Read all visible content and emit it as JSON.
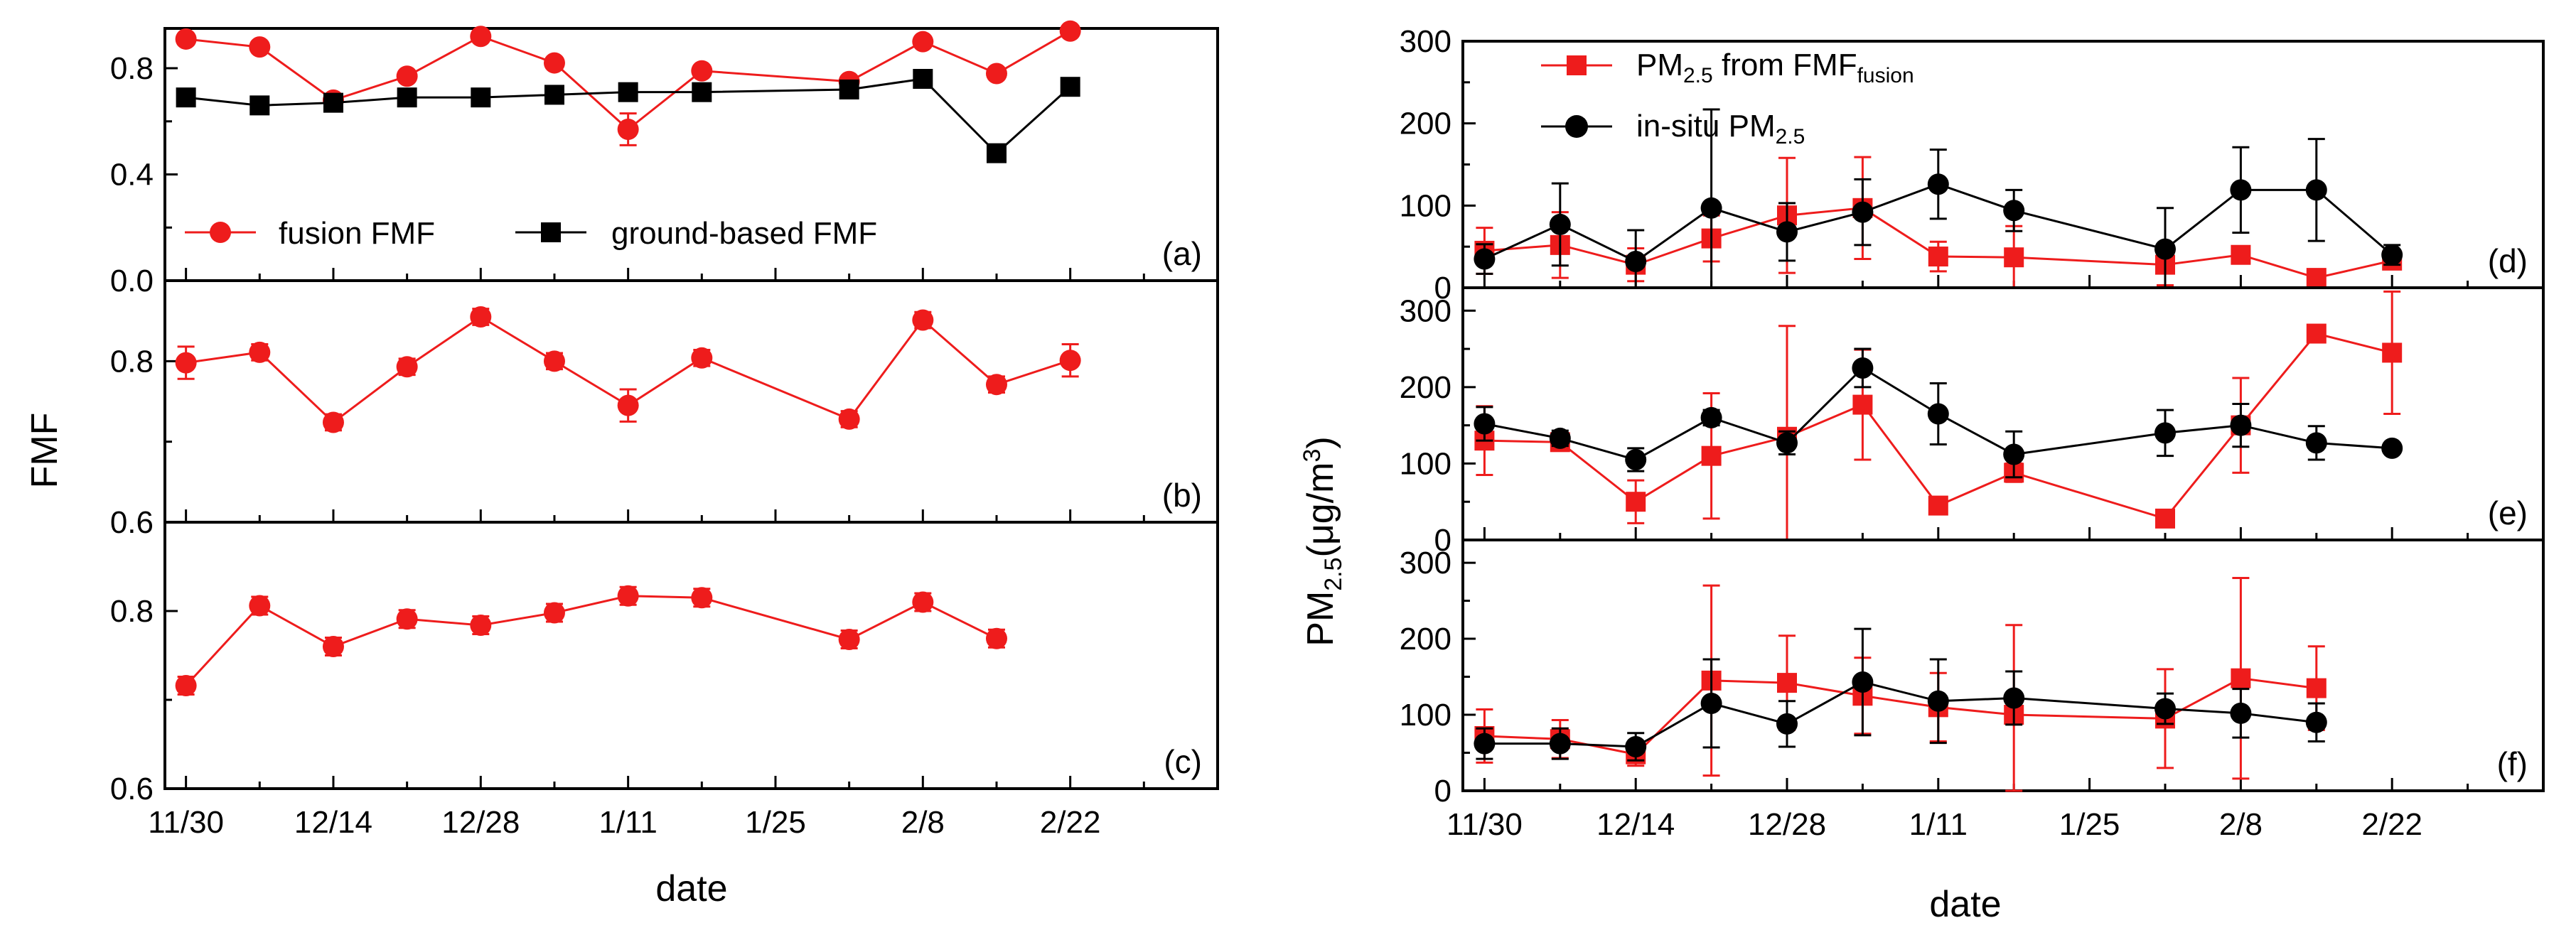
{
  "chart_data": [
    {
      "type": "line",
      "panel": "a",
      "panel_label": "(a)",
      "ylim": [
        0.0,
        0.95
      ],
      "yticks": [
        0.0,
        0.4,
        0.8
      ],
      "ytick_labels": [
        "0.0",
        "0.4",
        "0.8"
      ],
      "legend": [
        "fusion FMF",
        "ground-based FMF"
      ],
      "series": [
        {
          "name": "fusion FMF",
          "marker": "circle",
          "color": "#ee1c1c",
          "x": [
            0,
            7,
            14,
            21,
            28,
            35,
            42,
            49,
            63,
            70,
            77,
            84
          ],
          "y": [
            0.91,
            0.88,
            0.68,
            0.77,
            0.92,
            0.82,
            0.57,
            0.79,
            0.75,
            0.9,
            0.78,
            0.94
          ],
          "err": [
            0.02,
            0.02,
            0.02,
            0.02,
            0.02,
            0.02,
            0.06,
            0.02,
            0.02,
            0.02,
            0.02,
            0.02
          ]
        },
        {
          "name": "ground-based FMF",
          "marker": "square",
          "color": "#000000",
          "x": [
            0,
            7,
            14,
            21,
            28,
            35,
            42,
            49,
            63,
            70,
            77,
            84
          ],
          "y": [
            0.69,
            0.66,
            0.67,
            0.69,
            0.69,
            0.7,
            0.71,
            0.71,
            0.72,
            0.76,
            0.48,
            0.73
          ],
          "err": [
            0,
            0,
            0,
            0,
            0,
            0,
            0,
            0,
            0,
            0,
            0,
            0
          ]
        }
      ]
    },
    {
      "type": "line",
      "panel": "b",
      "panel_label": "(b)",
      "ylim": [
        0.6,
        0.9
      ],
      "yticks": [
        0.6,
        0.8
      ],
      "ytick_labels": [
        "0.6",
        "0.8"
      ],
      "series": [
        {
          "name": "fusion FMF",
          "marker": "circle",
          "color": "#ee1c1c",
          "x": [
            0,
            7,
            14,
            21,
            28,
            35,
            42,
            49,
            63,
            70,
            77,
            84
          ],
          "y": [
            0.798,
            0.811,
            0.724,
            0.793,
            0.855,
            0.8,
            0.745,
            0.804,
            0.728,
            0.851,
            0.771,
            0.801
          ],
          "err": [
            0.02,
            0.01,
            0.01,
            0.01,
            0.01,
            0.01,
            0.02,
            0.01,
            0.01,
            0.01,
            0.01,
            0.02
          ]
        }
      ]
    },
    {
      "type": "line",
      "panel": "c",
      "panel_label": "(c)",
      "ylim": [
        0.6,
        0.9
      ],
      "yticks": [
        0.6,
        0.8
      ],
      "ytick_labels": [
        "0.6",
        "0.8"
      ],
      "series": [
        {
          "name": "fusion FMF",
          "marker": "circle",
          "color": "#ee1c1c",
          "x": [
            0,
            7,
            14,
            21,
            28,
            35,
            42,
            49,
            63,
            70,
            77
          ],
          "y": [
            0.716,
            0.806,
            0.76,
            0.791,
            0.784,
            0.798,
            0.817,
            0.815,
            0.768,
            0.81,
            0.769
          ],
          "err": [
            0.01,
            0.01,
            0.01,
            0.01,
            0.01,
            0.01,
            0.01,
            0.01,
            0.01,
            0.01,
            0.01
          ]
        }
      ]
    },
    {
      "type": "line",
      "panel": "d",
      "panel_label": "(d)",
      "ylim": [
        0,
        300
      ],
      "yticks": [
        0,
        100,
        200,
        300
      ],
      "ytick_labels": [
        "0",
        "100",
        "200",
        "300"
      ],
      "legend": [
        "PM2.5 from FMFfusion",
        "in-situ PM2.5"
      ],
      "series": [
        {
          "name": "PM2.5 from FMFfusion",
          "marker": "square",
          "color": "#ee1c1c",
          "x": [
            0,
            7,
            14,
            21,
            28,
            35,
            42,
            49,
            63,
            70,
            77,
            84
          ],
          "y": [
            45,
            52,
            28,
            60,
            88,
            97,
            38,
            37,
            28,
            40,
            12,
            33
          ],
          "err": [
            28,
            40,
            20,
            28,
            70,
            62,
            18,
            38,
            25,
            10,
            10,
            8
          ]
        },
        {
          "name": "in-situ PM2.5",
          "marker": "circle",
          "color": "#000000",
          "x": [
            0,
            7,
            14,
            21,
            28,
            35,
            42,
            49,
            63,
            70,
            77,
            84
          ],
          "y": [
            35,
            77,
            32,
            97,
            68,
            92,
            126,
            94,
            47,
            119,
            119,
            40
          ],
          "err": [
            18,
            50,
            38,
            120,
            35,
            40,
            42,
            25,
            50,
            52,
            62,
            12
          ]
        }
      ]
    },
    {
      "type": "line",
      "panel": "e",
      "panel_label": "(e)",
      "ylim": [
        0,
        330
      ],
      "yticks": [
        0,
        100,
        200,
        300
      ],
      "ytick_labels": [
        "0",
        "100",
        "200",
        "300"
      ],
      "series": [
        {
          "name": "PM2.5 from FMFfusion",
          "marker": "square",
          "color": "#ee1c1c",
          "x": [
            0,
            7,
            14,
            21,
            28,
            35,
            42,
            49,
            63,
            70,
            77,
            84
          ],
          "y": [
            130,
            128,
            50,
            110,
            135,
            177,
            45,
            88,
            28,
            150,
            270,
            245
          ],
          "err": [
            45,
            10,
            28,
            82,
            145,
            72,
            10,
            12,
            5,
            62,
            8,
            80
          ]
        },
        {
          "name": "in-situ PM2.5",
          "marker": "circle",
          "color": "#000000",
          "x": [
            0,
            7,
            14,
            21,
            28,
            35,
            42,
            49,
            63,
            70,
            77,
            84
          ],
          "y": [
            152,
            133,
            105,
            160,
            127,
            225,
            165,
            112,
            140,
            150,
            127,
            120
          ],
          "err": [
            22,
            10,
            15,
            10,
            15,
            25,
            40,
            30,
            30,
            28,
            22,
            5
          ]
        }
      ]
    },
    {
      "type": "line",
      "panel": "f",
      "panel_label": "(f)",
      "ylim": [
        0,
        330
      ],
      "yticks": [
        0,
        100,
        200,
        300
      ],
      "ytick_labels": [
        "0",
        "100",
        "200",
        "300"
      ],
      "series": [
        {
          "name": "PM2.5 from FMFfusion",
          "marker": "square",
          "color": "#ee1c1c",
          "x": [
            0,
            7,
            14,
            21,
            28,
            35,
            42,
            49,
            63,
            70,
            77
          ],
          "y": [
            72,
            68,
            48,
            145,
            142,
            125,
            110,
            100,
            95,
            148,
            135
          ],
          "err": [
            35,
            25,
            15,
            125,
            62,
            50,
            45,
            118,
            65,
            132,
            55
          ]
        },
        {
          "name": "in-situ PM2.5",
          "marker": "circle",
          "color": "#000000",
          "x": [
            0,
            7,
            14,
            21,
            28,
            35,
            42,
            49,
            63,
            70,
            77
          ],
          "y": [
            62,
            62,
            58,
            115,
            88,
            143,
            118,
            122,
            108,
            102,
            90
          ],
          "err": [
            20,
            20,
            18,
            58,
            30,
            70,
            55,
            35,
            20,
            32,
            25
          ]
        }
      ]
    }
  ],
  "x_axis": {
    "tick_values": [
      0,
      14,
      28,
      42,
      56,
      70,
      84
    ],
    "tick_labels": [
      "11/30",
      "12/14",
      "12/28",
      "1/11",
      "1/25",
      "2/8",
      "2/22"
    ],
    "xlim": [
      -2,
      98
    ],
    "label": "date"
  },
  "left_ylabel": "FMF",
  "right_ylabel": {
    "main": "PM",
    "sub": "2.5",
    "unit_open": "(μg/m",
    "unit_sup": "3",
    "unit_close": ")"
  },
  "legend_a": [
    "fusion FMF",
    "ground-based FMF"
  ],
  "legend_d": {
    "red_main": "PM",
    "red_sub": "2.5",
    "red_mid": " from FMF",
    "red_sub2": "fusion",
    "black_main": "in-situ PM",
    "black_sub": "2.5"
  },
  "colors": {
    "red": "#ee1c1c",
    "black": "#000000"
  }
}
